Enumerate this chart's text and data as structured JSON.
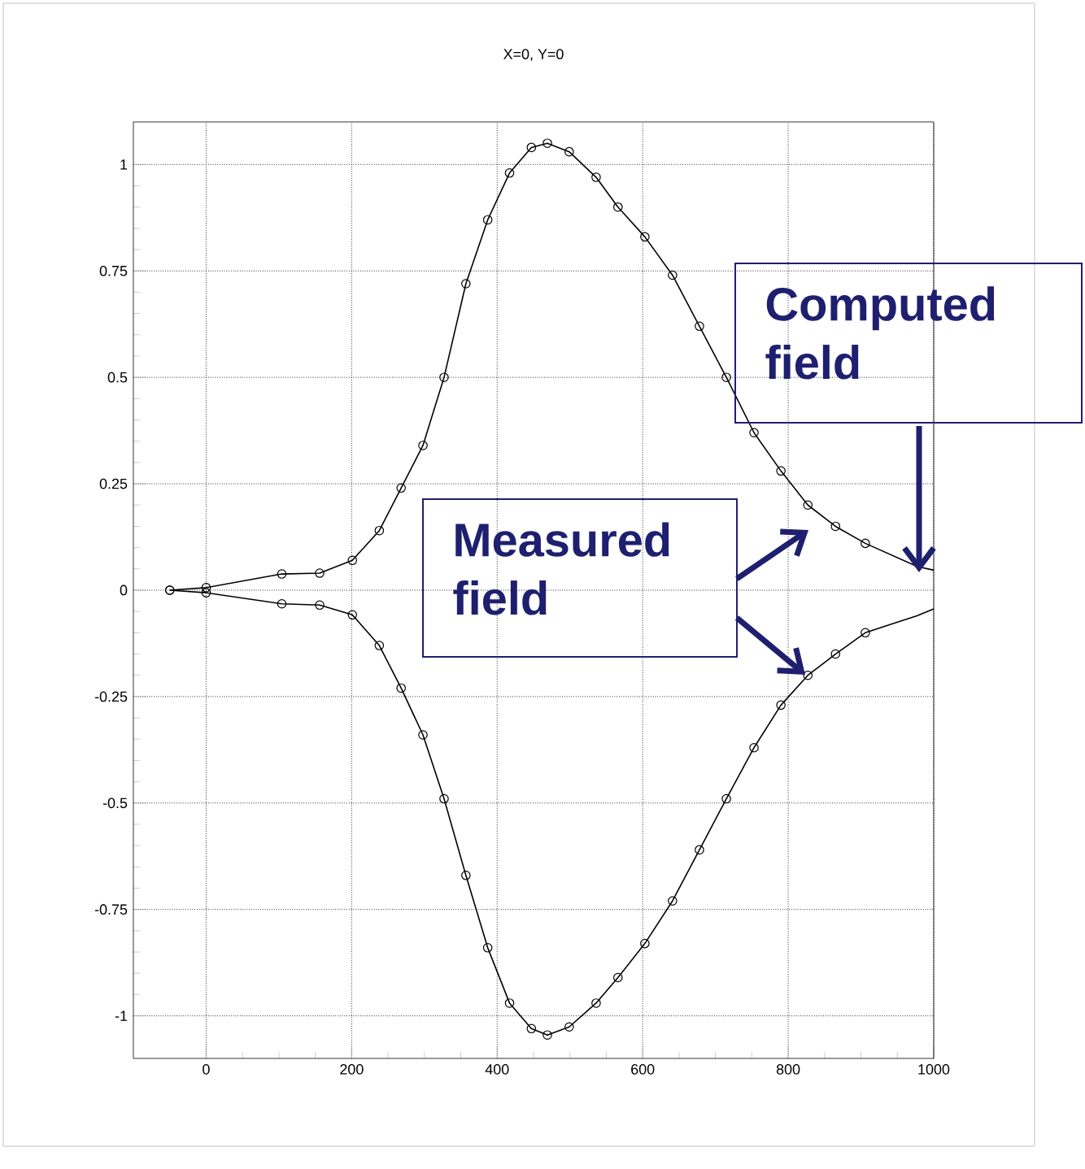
{
  "chart_data": {
    "type": "line",
    "title": "X=0, Y=0",
    "xlim": [
      -100,
      1000
    ],
    "ylim": [
      -1.1,
      1.1
    ],
    "xticks": [
      0,
      200,
      400,
      600,
      800,
      1000
    ],
    "yticks": [
      -1,
      -0.75,
      -0.5,
      -0.25,
      0,
      0.25,
      0.5,
      0.75,
      1
    ],
    "grid": true,
    "annotations": [
      "Measured field",
      "Computed field"
    ],
    "series": [
      {
        "color": "#000000",
        "marker": "none",
        "x": [
          -50,
          0,
          104,
          156,
          201,
          238,
          268,
          298,
          327,
          357,
          387,
          417,
          447,
          469,
          499,
          536,
          566,
          603,
          641,
          678,
          715,
          753,
          790,
          827,
          865,
          906,
          977,
          1000
        ],
        "values": [
          0,
          0.006,
          0.038,
          0.04,
          0.07,
          0.14,
          0.24,
          0.34,
          0.5,
          0.72,
          0.87,
          0.98,
          1.04,
          1.05,
          1.03,
          0.97,
          0.9,
          0.83,
          0.74,
          0.62,
          0.5,
          0.37,
          0.28,
          0.2,
          0.15,
          0.11,
          0.056,
          0.047
        ]
      },
      {
        "color": "#000000",
        "marker": "none",
        "x": [
          -50,
          0,
          104,
          156,
          201,
          238,
          268,
          298,
          327,
          357,
          387,
          417,
          447,
          469,
          499,
          536,
          566,
          603,
          641,
          678,
          715,
          753,
          790,
          827,
          865,
          906,
          977,
          1000
        ],
        "values": [
          0,
          -0.006,
          -0.032,
          -0.035,
          -0.058,
          -0.13,
          -0.23,
          -0.34,
          -0.49,
          -0.67,
          -0.84,
          -0.97,
          -1.03,
          -1.045,
          -1.026,
          -0.97,
          -0.91,
          -0.83,
          -0.73,
          -0.61,
          -0.49,
          -0.37,
          -0.27,
          -0.2,
          -0.15,
          -0.1,
          -0.06,
          -0.044
        ]
      },
      {
        "type": "scatter",
        "color": "#000000",
        "marker": "circle",
        "x": [
          -50,
          0,
          104,
          156,
          201,
          238,
          268,
          298,
          327,
          357,
          387,
          417,
          447,
          469,
          499,
          536,
          566,
          603,
          641,
          678,
          715,
          753,
          790,
          827,
          865,
          906
        ],
        "values": [
          0,
          0.006,
          0.038,
          0.04,
          0.07,
          0.14,
          0.24,
          0.34,
          0.5,
          0.72,
          0.87,
          0.98,
          1.04,
          1.05,
          1.03,
          0.97,
          0.9,
          0.83,
          0.74,
          0.62,
          0.5,
          0.37,
          0.28,
          0.2,
          0.15,
          0.11
        ]
      },
      {
        "type": "scatter",
        "color": "#000000",
        "marker": "circle",
        "x": [
          -50,
          0,
          104,
          156,
          201,
          238,
          268,
          298,
          327,
          357,
          387,
          417,
          447,
          469,
          499,
          536,
          566,
          603,
          641,
          678,
          715,
          753,
          790,
          827,
          865,
          906
        ],
        "values": [
          0,
          -0.006,
          -0.032,
          -0.035,
          -0.058,
          -0.13,
          -0.23,
          -0.34,
          -0.49,
          -0.67,
          -0.84,
          -0.97,
          -1.03,
          -1.045,
          -1.026,
          -0.97,
          -0.91,
          -0.83,
          -0.73,
          -0.61,
          -0.49,
          -0.37,
          -0.27,
          -0.2,
          -0.15,
          -0.1
        ]
      }
    ]
  }
}
